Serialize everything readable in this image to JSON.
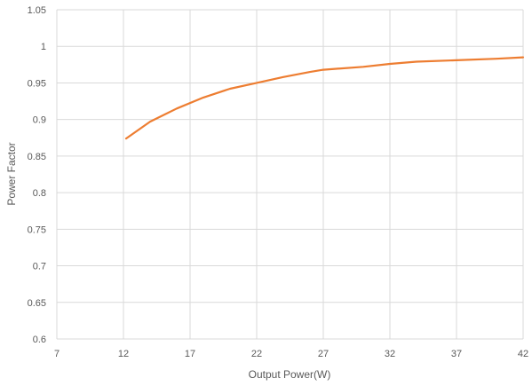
{
  "chart_data": {
    "type": "line",
    "title": "",
    "xlabel": "Output Power(W)",
    "ylabel": "Power Factor",
    "xlim": [
      7,
      42
    ],
    "ylim": [
      0.6,
      1.05
    ],
    "x_ticks": [
      "7",
      "12",
      "17",
      "22",
      "27",
      "32",
      "37",
      "42"
    ],
    "y_ticks": [
      "0.6",
      "0.65",
      "0.7",
      "0.75",
      "0.8",
      "0.85",
      "0.9",
      "0.95",
      "1",
      "1.05"
    ],
    "grid": true,
    "series": [
      {
        "color": "#ED7D31",
        "x": [
          12.2,
          14,
          16,
          18,
          20,
          22,
          24,
          26,
          27,
          30,
          32,
          34,
          37,
          40,
          42
        ],
        "y": [
          0.874,
          0.897,
          0.915,
          0.93,
          0.942,
          0.95,
          0.958,
          0.965,
          0.968,
          0.972,
          0.976,
          0.979,
          0.981,
          0.983,
          0.985
        ]
      }
    ]
  }
}
